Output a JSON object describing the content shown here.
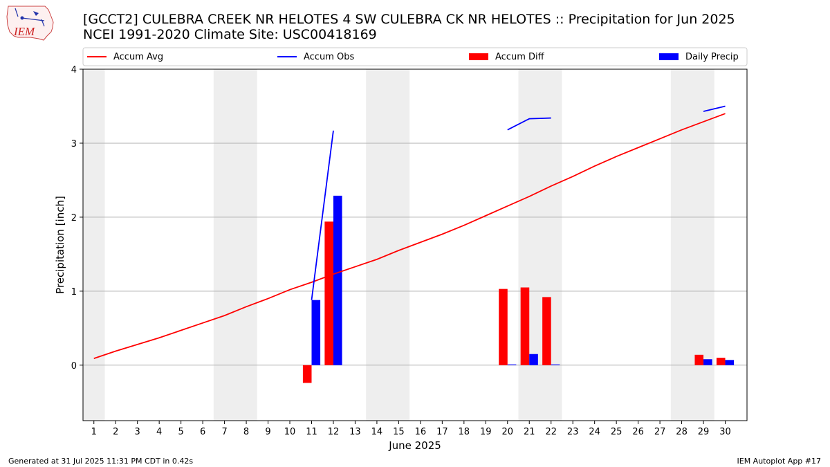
{
  "title": "[GCCT2] CULEBRA CREEK NR HELOTES 4 SW CULEBRA CK NR HELOTES :: Precipitation for Jun 2025",
  "subtitle": "NCEI 1991-2020 Climate Site: USC00418169",
  "logo_text": "IEM",
  "footer_left": "Generated at 31 Jul 2025 11:31 PM CDT in 0.42s",
  "footer_right": "IEM Autoplot App #17",
  "colors": {
    "avg": "#ff0000",
    "obs": "#0000ff",
    "diff": "#ff0000",
    "daily": "#0000ff",
    "weekend_shade": "#eeeeee",
    "grid": "#b0b0b0"
  },
  "chart_data": {
    "type": "bar",
    "xlabel": "June 2025",
    "ylabel": "Precipitation [inch]",
    "xlim": [
      0.5,
      31
    ],
    "ylim": [
      -0.75,
      4
    ],
    "yticks": [
      0,
      1,
      2,
      3,
      4
    ],
    "grid": "horizontal",
    "legend_placement": "top",
    "legend": [
      "Accum Avg",
      "Accum Obs",
      "Accum Diff",
      "Daily Precip"
    ],
    "weekend_days": [
      1,
      7,
      8,
      14,
      15,
      21,
      22,
      28,
      29
    ],
    "days": [
      1,
      2,
      3,
      4,
      5,
      6,
      7,
      8,
      9,
      10,
      11,
      12,
      13,
      14,
      15,
      16,
      17,
      18,
      19,
      20,
      21,
      22,
      23,
      24,
      25,
      26,
      27,
      28,
      29,
      30
    ],
    "series": [
      {
        "name": "Accum Avg",
        "kind": "line",
        "values": [
          0.09,
          0.19,
          0.28,
          0.37,
          0.47,
          0.57,
          0.67,
          0.79,
          0.9,
          1.02,
          1.12,
          1.23,
          1.33,
          1.43,
          1.55,
          1.66,
          1.77,
          1.89,
          2.02,
          2.15,
          2.28,
          2.42,
          2.55,
          2.69,
          2.82,
          2.94,
          3.06,
          3.18,
          3.29,
          3.4
        ]
      },
      {
        "name": "Accum Obs",
        "kind": "line",
        "values": [
          null,
          null,
          null,
          null,
          null,
          null,
          null,
          null,
          null,
          null,
          0.88,
          3.17,
          null,
          null,
          null,
          null,
          null,
          null,
          null,
          3.18,
          3.33,
          3.34,
          null,
          null,
          null,
          null,
          null,
          null,
          3.43,
          3.5
        ]
      },
      {
        "name": "Accum Diff",
        "kind": "bar",
        "values": [
          0,
          0,
          0,
          0,
          0,
          0,
          0,
          0,
          0,
          0,
          -0.24,
          1.94,
          0,
          0,
          0,
          0,
          0,
          0,
          0,
          1.03,
          1.05,
          0.92,
          0,
          0,
          0,
          0,
          0,
          0,
          0.14,
          0.1
        ]
      },
      {
        "name": "Daily Precip",
        "kind": "bar",
        "values": [
          0,
          0,
          0,
          0,
          0,
          0,
          0,
          0,
          0,
          0,
          0.88,
          2.29,
          0,
          0,
          0,
          0,
          0,
          0,
          0,
          0.01,
          0.15,
          0.01,
          0,
          0,
          0,
          0,
          0,
          0,
          0.08,
          0.07
        ]
      }
    ]
  }
}
